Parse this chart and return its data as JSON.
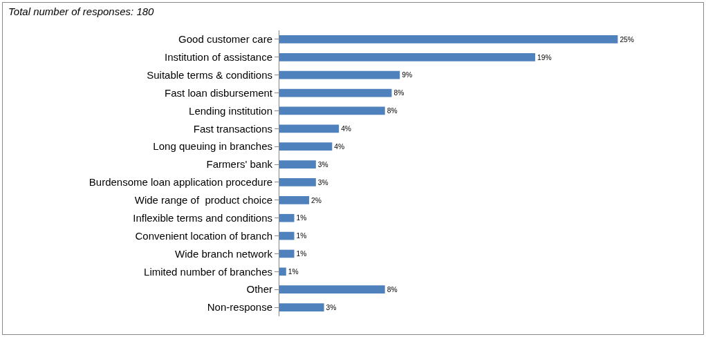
{
  "chart_data": {
    "type": "bar",
    "orientation": "horizontal",
    "subtitle": "Total number of responses: 180",
    "categories": [
      "Good customer care",
      "Institution of assistance",
      "Suitable terms & conditions",
      "Fast loan disbursement",
      "Lending institution",
      "Fast transactions",
      "Long queuing in branches",
      "Farmers' bank",
      "Burdensome loan application procedure",
      "Wide range of  product choice",
      "Inflexible terms and conditions",
      "Convenient location of branch",
      "Wide branch network",
      "Limited number of branches",
      "Other",
      "Non-response"
    ],
    "values": [
      25,
      18.9,
      8.9,
      8.3,
      7.8,
      4.4,
      3.9,
      2.7,
      2.7,
      2.2,
      1.1,
      1.1,
      1.1,
      0.5,
      7.8,
      3.3
    ],
    "value_labels": [
      "25%",
      "19%",
      "9%",
      "8%",
      "8%",
      "4%",
      "4%",
      "3%",
      "3%",
      "2%",
      "1%",
      "1%",
      "1%",
      "1%",
      "8%",
      "3%"
    ],
    "color": "#4f81bd",
    "tick_labels": "y"
  }
}
